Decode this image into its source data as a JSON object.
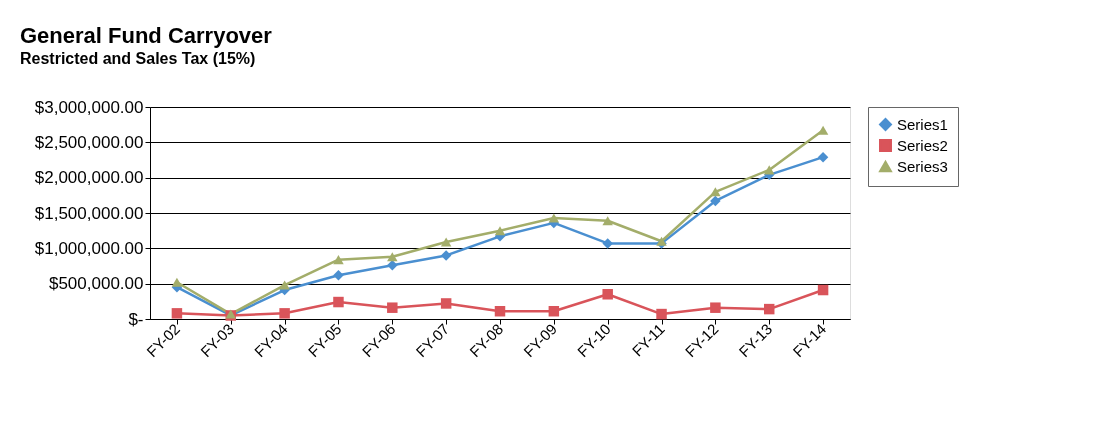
{
  "chart_data": {
    "type": "line",
    "title": "General Fund Carryover",
    "subtitle": "Restricted and Sales Tax (15%)",
    "categories": [
      "FY-02",
      "FY-03",
      "FY-04",
      "FY-05",
      "FY-06",
      "FY-07",
      "FY-08",
      "FY-09",
      "FY-10",
      "FY-11",
      "FY-12",
      "FY-13",
      "FY-14"
    ],
    "series": [
      {
        "name": "Series1",
        "color": "#4a8fd0",
        "marker": "diamond",
        "values": [
          450000,
          50000,
          410000,
          620000,
          760000,
          900000,
          1170000,
          1360000,
          1070000,
          1070000,
          1670000,
          2040000,
          2290000
        ]
      },
      {
        "name": "Series2",
        "color": "#d9545a",
        "marker": "square",
        "values": [
          80000,
          50000,
          80000,
          240000,
          160000,
          220000,
          110000,
          110000,
          350000,
          70000,
          160000,
          140000,
          410000
        ]
      },
      {
        "name": "Series3",
        "color": "#a3ad6a",
        "marker": "triangle",
        "values": [
          520000,
          70000,
          480000,
          840000,
          880000,
          1090000,
          1250000,
          1430000,
          1390000,
          1100000,
          1800000,
          2110000,
          2670000
        ]
      }
    ],
    "ylim": [
      0,
      3000000
    ],
    "yticks": [
      {
        "value": 0,
        "label": "$-"
      },
      {
        "value": 500000,
        "label": "$500,000.00"
      },
      {
        "value": 1000000,
        "label": "$1,000,000.00"
      },
      {
        "value": 1500000,
        "label": "$1,500,000.00"
      },
      {
        "value": 2000000,
        "label": "$2,000,000.00"
      },
      {
        "value": 2500000,
        "label": "$2,500,000.00"
      },
      {
        "value": 3000000,
        "label": "$3,000,000.00"
      }
    ],
    "grid": "y",
    "legend": "right",
    "line_style": "solid"
  }
}
